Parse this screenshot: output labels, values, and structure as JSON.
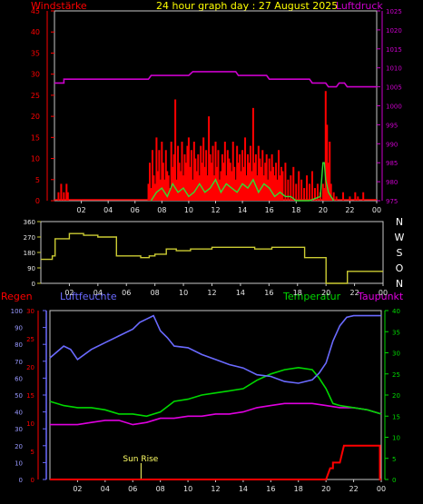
{
  "header": {
    "left_label": "Windstärke",
    "title": "24 hour graph day : 27 August 2025",
    "right_label": "Luftdruck"
  },
  "colors": {
    "background": "#000000",
    "frame": "#c8c8c8",
    "wind": "#ff0000",
    "gust_wind": "#33dd33",
    "pressure": "#cc00cc",
    "direction": "#cccc33",
    "humidity": "#6a6aff",
    "temperature": "#00d800",
    "dewpoint": "#e000e0",
    "rain": "#ff0000",
    "title": "#ffff00",
    "sunrise": "#ffff66"
  },
  "chart_data": [
    {
      "type": "line",
      "title": "24 hour graph day : 27 August 2025",
      "x_ticks": [
        "02",
        "04",
        "06",
        "08",
        "10",
        "12",
        "14",
        "16",
        "18",
        "20",
        "22",
        "00"
      ],
      "xlim": [
        0,
        24
      ],
      "y_left": {
        "label": "Windstärke",
        "ticks": [
          0,
          5,
          10,
          15,
          20,
          25,
          30,
          35,
          40,
          45
        ],
        "ylim": [
          0,
          45
        ]
      },
      "y_right": {
        "label": "Luftdruck",
        "ticks": [
          975,
          980,
          985,
          990,
          995,
          1000,
          1005,
          1010,
          1015,
          1020,
          1025
        ],
        "ylim": [
          975,
          1025
        ]
      },
      "series": [
        {
          "name": "Luftdruck",
          "axis": "right",
          "x": [
            0,
            0.7,
            0.7,
            4.0,
            7.0,
            7.2,
            10.0,
            10.3,
            13.5,
            13.7,
            15.8,
            16.0,
            19.0,
            19.2,
            20.2,
            20.4,
            21.0,
            21.2,
            21.6,
            21.8,
            24.0
          ],
          "values": [
            1006,
            1006,
            1007,
            1007,
            1007,
            1008,
            1008,
            1009,
            1009,
            1008,
            1008,
            1007,
            1007,
            1006,
            1006,
            1005,
            1005,
            1006,
            1006,
            1005,
            1005
          ]
        },
        {
          "name": "Windstärke",
          "axis": "left",
          "x": [
            0.3,
            0.5,
            0.7,
            0.9,
            1.0,
            7.0,
            7.1,
            7.2,
            7.3,
            7.4,
            7.5,
            7.6,
            7.7,
            7.8,
            7.9,
            8.0,
            8.1,
            8.2,
            8.3,
            8.4,
            8.5,
            8.6,
            8.7,
            8.8,
            8.9,
            9.0,
            9.1,
            9.2,
            9.3,
            9.4,
            9.5,
            9.6,
            9.7,
            9.8,
            9.9,
            10.0,
            10.1,
            10.2,
            10.3,
            10.4,
            10.5,
            10.6,
            10.7,
            10.8,
            10.9,
            11.0,
            11.1,
            11.2,
            11.3,
            11.4,
            11.5,
            11.6,
            11.7,
            11.8,
            11.9,
            12.0,
            12.1,
            12.2,
            12.3,
            12.4,
            12.5,
            12.6,
            12.7,
            12.8,
            12.9,
            13.0,
            13.1,
            13.2,
            13.3,
            13.4,
            13.5,
            13.6,
            13.7,
            13.8,
            13.9,
            14.0,
            14.1,
            14.2,
            14.3,
            14.4,
            14.5,
            14.6,
            14.7,
            14.8,
            14.9,
            15.0,
            15.1,
            15.2,
            15.3,
            15.4,
            15.5,
            15.6,
            15.7,
            15.8,
            15.9,
            16.0,
            16.1,
            16.2,
            16.3,
            16.4,
            16.5,
            16.6,
            16.7,
            16.8,
            16.9,
            17.0,
            17.2,
            17.4,
            17.6,
            17.8,
            18.0,
            18.2,
            18.4,
            18.6,
            18.8,
            19.0,
            19.2,
            19.4,
            19.6,
            19.8,
            20.0,
            20.1,
            20.2,
            20.3,
            20.4,
            20.5,
            20.6,
            20.8,
            21.0,
            21.5,
            22.0,
            22.4,
            22.6,
            23.0
          ],
          "values": [
            2,
            4,
            2,
            4,
            2,
            4,
            9,
            3,
            12,
            6,
            4,
            15,
            7,
            12,
            5,
            14,
            9,
            5,
            12,
            7,
            6,
            3,
            14,
            8,
            11,
            24,
            5,
            13,
            9,
            7,
            14,
            6,
            11,
            9,
            13,
            15,
            8,
            12,
            5,
            14,
            10,
            7,
            11,
            6,
            13,
            9,
            15,
            8,
            12,
            6,
            20,
            11,
            9,
            13,
            6,
            14,
            8,
            12,
            5,
            7,
            11,
            9,
            14,
            6,
            12,
            10,
            9,
            7,
            14,
            8,
            5,
            13,
            9,
            11,
            7,
            12,
            8,
            15,
            6,
            11,
            9,
            13,
            7,
            22,
            9,
            11,
            6,
            13,
            10,
            8,
            12,
            6,
            9,
            11,
            5,
            10,
            7,
            11,
            8,
            6,
            9,
            5,
            12,
            6,
            8,
            7,
            9,
            5,
            6,
            8,
            4,
            7,
            5,
            3,
            6,
            4,
            7,
            3,
            4,
            2,
            4,
            3,
            26,
            18,
            9,
            14,
            4,
            2,
            1,
            2,
            1,
            2,
            1,
            2
          ]
        },
        {
          "name": "Böen",
          "axis": "left",
          "x": [
            7.2,
            7.6,
            8.0,
            8.4,
            8.8,
            9.2,
            9.6,
            10.0,
            10.4,
            10.8,
            11.2,
            11.6,
            12.0,
            12.4,
            12.8,
            13.2,
            13.6,
            14.0,
            14.4,
            14.8,
            15.2,
            15.6,
            16.0,
            16.4,
            16.8,
            17.2,
            17.6,
            18.0,
            19.0,
            19.8,
            20.0,
            20.1,
            20.2,
            20.4,
            20.6,
            20.8
          ],
          "values": [
            0,
            2,
            3,
            1,
            4,
            2,
            3,
            1,
            2,
            4,
            2,
            3,
            5,
            2,
            4,
            3,
            2,
            4,
            3,
            5,
            2,
            4,
            3,
            1,
            2,
            1,
            1,
            0,
            0,
            1,
            9,
            9,
            5,
            2,
            1,
            0
          ]
        }
      ]
    },
    {
      "type": "line",
      "title": "",
      "x_ticks": [
        "02",
        "04",
        "06",
        "08",
        "10",
        "12",
        "14",
        "16",
        "18",
        "20",
        "22",
        "00"
      ],
      "xlim": [
        0,
        24
      ],
      "y_left": {
        "ticks": [
          0,
          90,
          180,
          270,
          360
        ],
        "ylim": [
          0,
          360
        ]
      },
      "y_right": {
        "ticks": [
          "N",
          "W",
          "S",
          "O",
          "N"
        ]
      },
      "series": [
        {
          "name": "Windrichtung",
          "x": [
            0.0,
            0.8,
            0.8,
            1.0,
            1.0,
            2.0,
            2.0,
            3.0,
            3.0,
            4.0,
            4.0,
            5.3,
            5.3,
            7.0,
            7.0,
            7.6,
            7.6,
            8.0,
            8.0,
            8.8,
            8.8,
            9.5,
            9.5,
            10.5,
            10.5,
            12.0,
            12.0,
            15.0,
            15.0,
            16.2,
            16.2,
            18.5,
            18.5,
            20.0,
            20.0,
            21.5,
            21.5,
            24.0
          ],
          "values": [
            140,
            140,
            160,
            160,
            260,
            260,
            290,
            290,
            280,
            280,
            270,
            270,
            160,
            160,
            150,
            150,
            160,
            160,
            170,
            170,
            200,
            200,
            190,
            190,
            200,
            200,
            210,
            210,
            200,
            200,
            210,
            210,
            150,
            150,
            0,
            0,
            70,
            70
          ]
        }
      ]
    },
    {
      "type": "line",
      "title": "",
      "labels": {
        "rain": "Regen",
        "humidity": "Luftfeuchte",
        "temperature": "Temperatur",
        "dewpoint": "Taupunkt"
      },
      "annotation": {
        "text": "Sun Rise",
        "x": 6.6
      },
      "x_ticks": [
        "02",
        "04",
        "06",
        "08",
        "10",
        "12",
        "14",
        "16",
        "18",
        "20",
        "22",
        "00"
      ],
      "xlim": [
        0,
        24
      ],
      "y_rain": {
        "ticks": [
          0,
          5,
          10,
          15,
          20,
          25,
          30
        ],
        "ylim": [
          0,
          30
        ]
      },
      "y_humidity": {
        "ticks": [
          0,
          10,
          20,
          30,
          40,
          50,
          60,
          70,
          80,
          90,
          100
        ],
        "ylim": [
          0,
          100
        ]
      },
      "y_right": {
        "ticks": [
          0,
          5,
          10,
          15,
          20,
          25,
          30,
          35,
          40
        ],
        "ylim": [
          0,
          40
        ]
      },
      "series": [
        {
          "name": "Luftfeuchte",
          "axis": "humidity",
          "x": [
            0,
            1.0,
            1.5,
            2.0,
            3.0,
            4.0,
            5.0,
            6.0,
            6.5,
            7.0,
            7.5,
            8.0,
            8.5,
            9.0,
            10.0,
            11.0,
            12.0,
            13.0,
            14.0,
            15.0,
            16.0,
            17.0,
            18.0,
            19.0,
            19.5,
            20.0,
            20.5,
            21.0,
            21.5,
            22.0,
            23.0,
            24.0
          ],
          "values": [
            72,
            79,
            77,
            71,
            77,
            81,
            85,
            89,
            93,
            95,
            97,
            88,
            84,
            79,
            78,
            74,
            71,
            68,
            66,
            62,
            61,
            58,
            57,
            59,
            63,
            69,
            82,
            91,
            96,
            97,
            97,
            97
          ]
        },
        {
          "name": "Temperatur",
          "axis": "right",
          "x": [
            0,
            1.0,
            2.0,
            3.0,
            4.0,
            5.0,
            6.0,
            7.0,
            8.0,
            9.0,
            10.0,
            11.0,
            12.0,
            13.0,
            14.0,
            15.0,
            16.0,
            17.0,
            18.0,
            19.0,
            19.5,
            20.0,
            20.5,
            21.0,
            22.0,
            23.0,
            24.0
          ],
          "values": [
            18.5,
            17.5,
            17.0,
            17.0,
            16.5,
            15.5,
            15.5,
            15.0,
            16.0,
            18.5,
            19.0,
            20.0,
            20.5,
            21.0,
            21.5,
            23.5,
            25.0,
            26.0,
            26.5,
            26.0,
            24.0,
            21.5,
            18.0,
            17.5,
            17.0,
            16.5,
            15.5
          ]
        },
        {
          "name": "Taupunkt",
          "axis": "right",
          "x": [
            0,
            1.0,
            2.0,
            3.0,
            4.0,
            5.0,
            6.0,
            7.0,
            8.0,
            9.0,
            10.0,
            11.0,
            12.0,
            13.0,
            14.0,
            15.0,
            16.0,
            17.0,
            18.0,
            19.0,
            20.0,
            21.0,
            22.0,
            23.0,
            24.0
          ],
          "values": [
            13.0,
            13.0,
            13.0,
            13.5,
            14.0,
            14.0,
            13.0,
            13.5,
            14.5,
            14.5,
            15.0,
            15.0,
            15.5,
            15.5,
            16.0,
            17.0,
            17.5,
            18.0,
            18.0,
            18.0,
            17.5,
            17.0,
            17.0,
            16.5,
            15.5
          ]
        },
        {
          "name": "Regen",
          "axis": "rain",
          "x": [
            0,
            20.0,
            20.3,
            20.5,
            20.5,
            21.0,
            21.3,
            21.5,
            21.5,
            23.9,
            23.9,
            24.0
          ],
          "values": [
            0,
            0,
            2,
            2,
            3,
            3,
            6,
            6,
            6,
            6,
            0,
            0
          ]
        }
      ]
    }
  ]
}
